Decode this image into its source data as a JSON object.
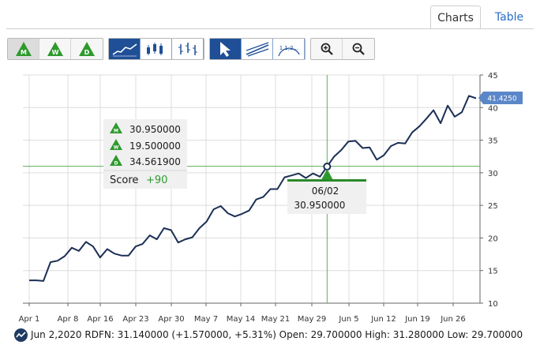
{
  "tabs": {
    "charts": "Charts",
    "table": "Table"
  },
  "toolbar": {
    "ratings": [
      {
        "letter": "M",
        "name": "monthly-rating-button"
      },
      {
        "letter": "W",
        "name": "weekly-rating-button"
      },
      {
        "letter": "D",
        "name": "daily-rating-button"
      }
    ]
  },
  "colors": {
    "line": "#1b2f55",
    "crosshair": "#5cae5c",
    "score": "#2e9a2e",
    "label_bg": "#5b87c8",
    "marker_bar": "#2a8a2a"
  },
  "tooltip": {
    "values": [
      "30.950000",
      "19.500000",
      "34.561900"
    ],
    "score_label": "Score",
    "score_value": "+90"
  },
  "crosshair": {
    "date": "06/02",
    "value": "30.950000"
  },
  "last_price_label": "41.4250",
  "footer": {
    "text": "Jun 2,2020 RDFN: 31.140000 (+1.570000, +5.31%) Open: 29.700000 High: 31.280000 Low: 29.700000"
  },
  "chart_data": {
    "type": "line",
    "series": [
      {
        "values": [
          13.5,
          13.5,
          13.4,
          16.3,
          16.5,
          17.2,
          18.5,
          18.0,
          19.4,
          18.7,
          17.0,
          18.3,
          17.6,
          17.3,
          17.3,
          18.7,
          19.1,
          20.4,
          19.8,
          21.5,
          21.2,
          19.3,
          19.8,
          20.1,
          21.5,
          22.5,
          24.4,
          24.9,
          23.8,
          23.3,
          23.7,
          24.2,
          25.9,
          26.3,
          27.5,
          27.5,
          29.3,
          29.6,
          29.9,
          29.2,
          29.9,
          29.4,
          30.95,
          32.5,
          33.5,
          34.8,
          34.9,
          33.8,
          33.9,
          32.0,
          32.7,
          34.1,
          34.6,
          34.5,
          36.2,
          37.1,
          38.3,
          39.6,
          37.6,
          40.3,
          38.6,
          39.3,
          41.8,
          41.425
        ]
      }
    ],
    "x_ticks": [
      "Apr 1",
      "Apr 8",
      "Apr 16",
      "Apr 23",
      "Apr 30",
      "May 7",
      "May 14",
      "May 21",
      "May 29",
      "Jun 5",
      "Jun 12",
      "Jun 19",
      "Jun 26"
    ],
    "y_ticks": [
      10,
      15,
      20,
      25,
      30,
      35,
      40,
      45
    ],
    "ylim": [
      10,
      45
    ],
    "horizontal_line": 31.0,
    "grid": true
  }
}
